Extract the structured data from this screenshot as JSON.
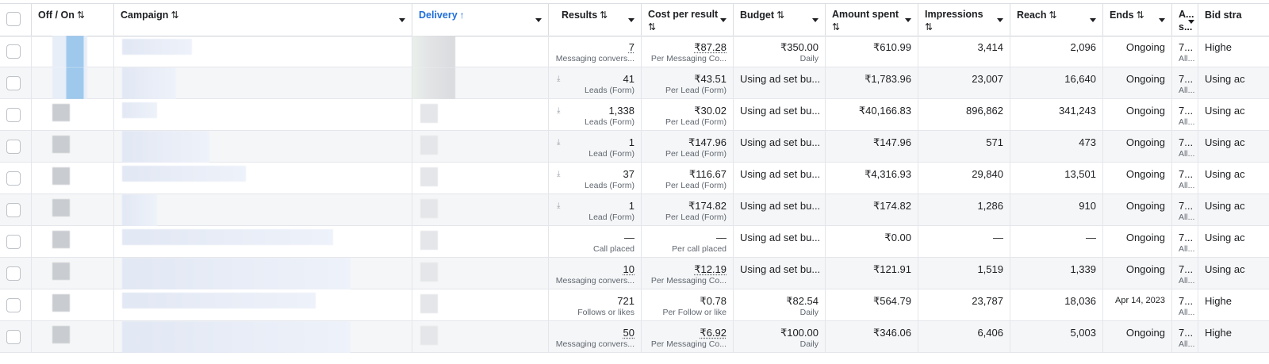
{
  "columns": {
    "off_on": "Off / On",
    "campaign": "Campaign",
    "delivery": "Delivery",
    "results": "Results",
    "cost_per_result_1": "Cost per result",
    "budget": "Budget",
    "amount_spent_1": "Amount spent",
    "impressions_1": "Impressions",
    "reach": "Reach",
    "ends": "Ends",
    "attribution_1": "A...",
    "attribution_2": "s...",
    "bid_strategy": "Bid stra",
    "sort_icon": "⇅",
    "sort_asc_icon": "↑"
  },
  "rows": [
    {
      "result": "7",
      "result_type": "Messaging convers...",
      "cost": "₹87.28",
      "cost_type": "Per Messaging Co...",
      "budget": "₹350.00",
      "budget_type": "Daily",
      "spent": "₹610.99",
      "impressions": "3,414",
      "reach": "2,096",
      "ends": "Ongoing",
      "attr": "7...",
      "attr2": "All...",
      "bid": "Highe"
    },
    {
      "result": "41",
      "result_type": "Leads (Form)",
      "cost": "₹43.51",
      "cost_type": "Per Lead (Form)",
      "budget": "Using ad set bu...",
      "budget_type": "",
      "spent": "₹1,783.96",
      "impressions": "23,007",
      "reach": "16,640",
      "ends": "Ongoing",
      "attr": "7...",
      "attr2": "All...",
      "bid": "Using ac"
    },
    {
      "result": "1,338",
      "result_type": "Leads (Form)",
      "cost": "₹30.02",
      "cost_type": "Per Lead (Form)",
      "budget": "Using ad set bu...",
      "budget_type": "",
      "spent": "₹40,166.83",
      "impressions": "896,862",
      "reach": "341,243",
      "ends": "Ongoing",
      "attr": "7...",
      "attr2": "All...",
      "bid": "Using ac"
    },
    {
      "result": "1",
      "result_type": "Lead (Form)",
      "cost": "₹147.96",
      "cost_type": "Per Lead (Form)",
      "budget": "Using ad set bu...",
      "budget_type": "",
      "spent": "₹147.96",
      "impressions": "571",
      "reach": "473",
      "ends": "Ongoing",
      "attr": "7...",
      "attr2": "All...",
      "bid": "Using ac"
    },
    {
      "result": "37",
      "result_type": "Leads (Form)",
      "cost": "₹116.67",
      "cost_type": "Per Lead (Form)",
      "budget": "Using ad set bu...",
      "budget_type": "",
      "spent": "₹4,316.93",
      "impressions": "29,840",
      "reach": "13,501",
      "ends": "Ongoing",
      "attr": "7...",
      "attr2": "All...",
      "bid": "Using ac"
    },
    {
      "result": "1",
      "result_type": "Lead (Form)",
      "cost": "₹174.82",
      "cost_type": "Per Lead (Form)",
      "budget": "Using ad set bu...",
      "budget_type": "",
      "spent": "₹174.82",
      "impressions": "1,286",
      "reach": "910",
      "ends": "Ongoing",
      "attr": "7...",
      "attr2": "All...",
      "bid": "Using ac"
    },
    {
      "result": "—",
      "result_type": "Call placed",
      "cost": "—",
      "cost_type": "Per call placed",
      "budget": "Using ad set bu...",
      "budget_type": "",
      "spent": "₹0.00",
      "impressions": "—",
      "reach": "—",
      "ends": "Ongoing",
      "attr": "7...",
      "attr2": "All...",
      "bid": "Using ac"
    },
    {
      "result": "10",
      "result_type": "Messaging convers...",
      "cost": "₹12.19",
      "cost_type": "Per Messaging Co...",
      "budget": "Using ad set bu...",
      "budget_type": "",
      "spent": "₹121.91",
      "impressions": "1,519",
      "reach": "1,339",
      "ends": "Ongoing",
      "attr": "7...",
      "attr2": "All...",
      "bid": "Using ac"
    },
    {
      "result": "721",
      "result_type": "Follows or likes",
      "cost": "₹0.78",
      "cost_type": "Per Follow or like",
      "budget": "₹82.54",
      "budget_type": "Daily",
      "spent": "₹564.79",
      "impressions": "23,787",
      "reach": "18,036",
      "ends": "Apr 14, 2023",
      "attr": "7...",
      "attr2": "All...",
      "bid": "Highe"
    },
    {
      "result": "50",
      "result_type": "Messaging convers...",
      "cost": "₹6.92",
      "cost_type": "Per Messaging Co...",
      "budget": "₹100.00",
      "budget_type": "Daily",
      "spent": "₹346.06",
      "impressions": "6,406",
      "reach": "5,003",
      "ends": "Ongoing",
      "attr": "7...",
      "attr2": "All...",
      "bid": "Highe"
    }
  ],
  "icons": {
    "download": "download-icon",
    "sort": "sort-icon",
    "dropdown": "chevron-down-icon"
  },
  "colors": {
    "accent": "#216fdb",
    "row_alt": "#f5f6f7",
    "border": "#dadde1"
  }
}
